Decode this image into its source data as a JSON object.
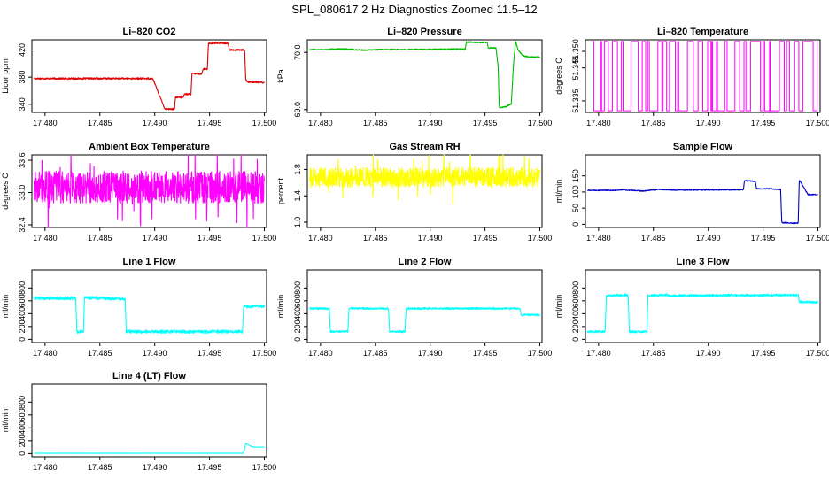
{
  "page_title": "SPL_080617  2 Hz Diagnostics Zoomed 11.5–12",
  "chart_data": [
    {
      "type": "line",
      "title": "Li–820 CO2",
      "ylabel": "Licor ppm",
      "color": "#dd0000",
      "xlim": [
        17.4788,
        17.5002
      ],
      "ylim": [
        328,
        435
      ],
      "yticks": [
        340,
        380,
        420
      ],
      "ytick_labels": [
        "340",
        "380",
        "420"
      ],
      "xticks": [
        17.48,
        17.485,
        17.49,
        17.495,
        17.5
      ],
      "xtick_labels": [
        "17.480",
        "17.485",
        "17.490",
        "17.495",
        "17.500"
      ],
      "noise": 1.2,
      "spikes": 0,
      "x": [
        17.479,
        17.4898,
        17.4899,
        17.4909,
        17.491,
        17.4918,
        17.4919,
        17.4926,
        17.4927,
        17.4933,
        17.4934,
        17.4943,
        17.4944,
        17.4948,
        17.4949,
        17.4967,
        17.4968,
        17.4982,
        17.4983,
        17.4985,
        17.5
      ],
      "y": [
        378,
        378,
        375,
        334,
        333,
        333,
        350,
        350,
        355,
        355,
        385,
        385,
        392,
        392,
        430,
        430,
        420,
        420,
        376,
        373,
        372
      ]
    },
    {
      "type": "line",
      "title": "Li–820 Pressure",
      "ylabel": "kPa",
      "color": "#00bb00",
      "xlim": [
        17.4788,
        17.5002
      ],
      "ylim": [
        68.95,
        70.22
      ],
      "yticks": [
        69.0,
        70.0
      ],
      "ytick_labels": [
        "69.0",
        "70.0"
      ],
      "xticks": [
        17.48,
        17.485,
        17.49,
        17.495,
        17.5
      ],
      "xtick_labels": [
        "17.480",
        "17.485",
        "17.490",
        "17.495",
        "17.500"
      ],
      "noise": 0.01,
      "spikes": 0,
      "x": [
        17.479,
        17.4805,
        17.4812,
        17.482,
        17.484,
        17.4855,
        17.488,
        17.4932,
        17.4933,
        17.4952,
        17.4953,
        17.496,
        17.4962,
        17.4963,
        17.4968,
        17.4969,
        17.4974,
        17.4976,
        17.4978,
        17.498,
        17.4984,
        17.499,
        17.5
      ],
      "y": [
        70.05,
        70.05,
        70.06,
        70.06,
        70.04,
        70.05,
        70.05,
        70.06,
        70.18,
        70.17,
        70.08,
        70.08,
        69.75,
        69.03,
        69.05,
        69.05,
        69.1,
        69.8,
        70.2,
        70.05,
        69.95,
        69.92,
        69.92
      ]
    },
    {
      "type": "line",
      "title": "Li–820 Temperature",
      "ylabel": "degrees C",
      "color": "#ff00ff",
      "xlim": [
        17.4788,
        17.5002
      ],
      "ylim": [
        51.3315,
        51.3535
      ],
      "yticks": [
        51.335,
        51.345,
        51.35
      ],
      "ytick_labels": [
        "51.335",
        "51.345",
        "51.350"
      ],
      "xticks": [
        17.48,
        17.485,
        17.49,
        17.495,
        17.5
      ],
      "xtick_labels": [
        "17.480",
        "17.485",
        "17.490",
        "17.495",
        "17.500"
      ],
      "noise": 0,
      "spikes": 0,
      "toggle": true,
      "toggle_levels": [
        51.332,
        51.353
      ],
      "toggle_start": 17.4794,
      "toggle_end": 17.5
    },
    {
      "type": "line",
      "title": "Ambient Box Temperature",
      "ylabel": "degrees C",
      "color": "#ff00ff",
      "xlim": [
        17.4788,
        17.5002
      ],
      "ylim": [
        32.35,
        33.7
      ],
      "yticks": [
        32.4,
        33.0,
        33.6
      ],
      "ytick_labels": [
        "32.4",
        "33.0",
        "33.6"
      ],
      "xticks": [
        17.48,
        17.485,
        17.49,
        17.495,
        17.5
      ],
      "xtick_labels": [
        "17.480",
        "17.485",
        "17.490",
        "17.495",
        "17.500"
      ],
      "noise": 0.3,
      "spikes": 40,
      "x": [
        17.479,
        17.5
      ],
      "y": [
        33.1,
        33.1
      ]
    },
    {
      "type": "line",
      "title": "Gas Stream RH",
      "ylabel": "percent",
      "color": "#ffff00",
      "xlim": [
        17.4788,
        17.5002
      ],
      "ylim": [
        0.92,
        2.02
      ],
      "yticks": [
        1.0,
        1.4,
        1.8
      ],
      "ytick_labels": [
        "1.0",
        "1.4",
        "1.8"
      ],
      "xticks": [
        17.48,
        17.485,
        17.49,
        17.495,
        17.5
      ],
      "xtick_labels": [
        "17.480",
        "17.485",
        "17.490",
        "17.495",
        "17.500"
      ],
      "noise": 0.15,
      "spikes": 30,
      "x": [
        17.479,
        17.5
      ],
      "y": [
        1.68,
        1.68
      ]
    },
    {
      "type": "line",
      "title": "Sample Flow",
      "ylabel": "ml/min",
      "color": "#0000cc",
      "xlim": [
        17.4788,
        17.5002
      ],
      "ylim": [
        -10,
        215
      ],
      "yticks": [
        0,
        50,
        100,
        150
      ],
      "ytick_labels": [
        "0",
        "50",
        "100",
        "150"
      ],
      "xticks": [
        17.48,
        17.485,
        17.49,
        17.495,
        17.5
      ],
      "xtick_labels": [
        "17.480",
        "17.485",
        "17.490",
        "17.495",
        "17.500"
      ],
      "noise": 1.5,
      "spikes": 0,
      "x": [
        17.479,
        17.4815,
        17.482,
        17.484,
        17.4855,
        17.487,
        17.4932,
        17.4933,
        17.4943,
        17.4944,
        17.4955,
        17.4966,
        17.4967,
        17.4982,
        17.4983,
        17.4987,
        17.4991,
        17.5
      ],
      "y": [
        105,
        105,
        107,
        103,
        108,
        106,
        107,
        135,
        133,
        110,
        110,
        108,
        5,
        3,
        138,
        115,
        92,
        92
      ]
    },
    {
      "type": "line",
      "title": "Line 1 Flow",
      "ylabel": "ml/min",
      "color": "#00ffff",
      "xlim": [
        17.4788,
        17.5002
      ],
      "ylim": [
        -50,
        1080
      ],
      "yticks": [
        0,
        200,
        400,
        600,
        800
      ],
      "ytick_labels": [
        "0",
        "200",
        "400",
        "600",
        "800"
      ],
      "xticks": [
        17.48,
        17.485,
        17.49,
        17.495,
        17.5
      ],
      "xtick_labels": [
        "17.480",
        "17.485",
        "17.490",
        "17.495",
        "17.500"
      ],
      "noise": 25,
      "spikes": 0,
      "x": [
        17.479,
        17.4828,
        17.4829,
        17.4835,
        17.4836,
        17.4873,
        17.4874,
        17.498,
        17.4981,
        17.5
      ],
      "y": [
        640,
        640,
        120,
        120,
        650,
        630,
        120,
        120,
        510,
        520
      ]
    },
    {
      "type": "line",
      "title": "Line 2 Flow",
      "ylabel": "ml/min",
      "color": "#00ffff",
      "xlim": [
        17.4788,
        17.5002
      ],
      "ylim": [
        -50,
        1080
      ],
      "yticks": [
        0,
        200,
        400,
        600,
        800
      ],
      "ytick_labels": [
        "0",
        "200",
        "400",
        "600",
        "800"
      ],
      "xticks": [
        17.48,
        17.485,
        17.49,
        17.495,
        17.5
      ],
      "xtick_labels": [
        "17.480",
        "17.485",
        "17.490",
        "17.495",
        "17.500"
      ],
      "noise": 15,
      "spikes": 0,
      "x": [
        17.479,
        17.4808,
        17.4809,
        17.4825,
        17.4826,
        17.4862,
        17.4863,
        17.4877,
        17.4878,
        17.4982,
        17.4983,
        17.5
      ],
      "y": [
        480,
        480,
        120,
        120,
        480,
        480,
        120,
        120,
        480,
        480,
        380,
        380
      ]
    },
    {
      "type": "line",
      "title": "Line 3 Flow",
      "ylabel": "ml/min",
      "color": "#00ffff",
      "xlim": [
        17.4788,
        17.5002
      ],
      "ylim": [
        -50,
        1080
      ],
      "yticks": [
        0,
        200,
        400,
        600,
        800
      ],
      "ytick_labels": [
        "0",
        "200",
        "400",
        "600",
        "800"
      ],
      "xticks": [
        17.48,
        17.485,
        17.49,
        17.495,
        17.5
      ],
      "xtick_labels": [
        "17.480",
        "17.485",
        "17.490",
        "17.495",
        "17.500"
      ],
      "noise": 18,
      "spikes": 0,
      "x": [
        17.479,
        17.4806,
        17.4807,
        17.4827,
        17.4828,
        17.4844,
        17.4845,
        17.4863,
        17.4864,
        17.4982,
        17.4983,
        17.5
      ],
      "y": [
        120,
        120,
        680,
        690,
        120,
        120,
        680,
        690,
        680,
        690,
        580,
        580
      ]
    },
    {
      "type": "line",
      "title": "Line 4 (LT) Flow",
      "ylabel": "ml/min",
      "color": "#00ffff",
      "xlim": [
        17.4788,
        17.5002
      ],
      "ylim": [
        -50,
        1080
      ],
      "yticks": [
        0,
        200,
        400,
        600,
        800
      ],
      "ytick_labels": [
        "0",
        "200",
        "400",
        "600",
        "800"
      ],
      "xticks": [
        17.48,
        17.485,
        17.49,
        17.495,
        17.5
      ],
      "xtick_labels": [
        "17.480",
        "17.485",
        "17.490",
        "17.495",
        "17.500"
      ],
      "noise": 2,
      "spikes": 0,
      "x": [
        17.479,
        17.4981,
        17.4983,
        17.4988,
        17.4991,
        17.5
      ],
      "y": [
        5,
        5,
        160,
        110,
        100,
        100
      ]
    }
  ]
}
